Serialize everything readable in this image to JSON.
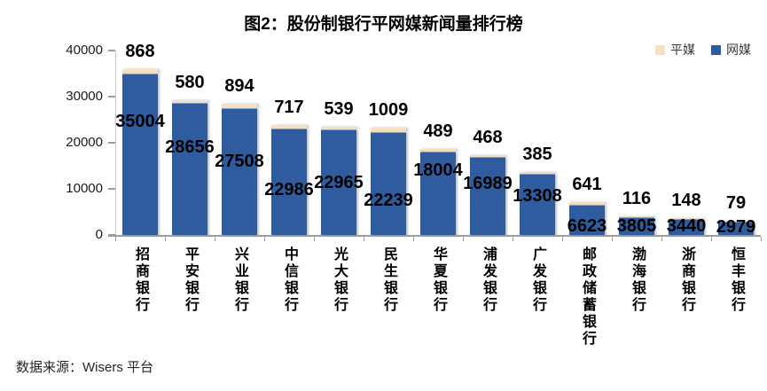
{
  "title": "图2：股份制银行平网媒新闻量排行榜",
  "footer": "数据来源：Wisers 平台",
  "legend": [
    {
      "label": "平媒",
      "color": "#F7DFC2"
    },
    {
      "label": "网媒",
      "color": "#2E5C9E"
    }
  ],
  "chart_data": {
    "type": "bar",
    "stacked": true,
    "title": "图2：股份制银行平网媒新闻量排行榜",
    "xlabel": "",
    "ylabel": "",
    "categories": [
      "招商银行",
      "平安银行",
      "兴业银行",
      "中信银行",
      "光大银行",
      "民生银行",
      "华夏银行",
      "浦发银行",
      "广发银行",
      "邮政储蓄银行",
      "渤海银行",
      "浙商银行",
      "恒丰银行"
    ],
    "series": [
      {
        "name": "网媒",
        "color": "#2E5C9E",
        "values": [
          35004,
          28656,
          27508,
          22986,
          22965,
          22239,
          18004,
          16989,
          13308,
          6623,
          3805,
          3440,
          2979
        ]
      },
      {
        "name": "平媒",
        "color": "#F7DFC2",
        "values": [
          868,
          580,
          894,
          717,
          539,
          1009,
          489,
          468,
          385,
          641,
          116,
          148,
          79
        ]
      }
    ],
    "ylim": [
      0,
      40000
    ],
    "yticks": [
      0,
      10000,
      20000,
      30000,
      40000
    ],
    "grid": false,
    "legend_position": "top-right",
    "label_dy": [
      55,
      51,
      61,
      70,
      61,
      78,
      22,
      31,
      26,
      25,
      11,
      9,
      7
    ]
  }
}
